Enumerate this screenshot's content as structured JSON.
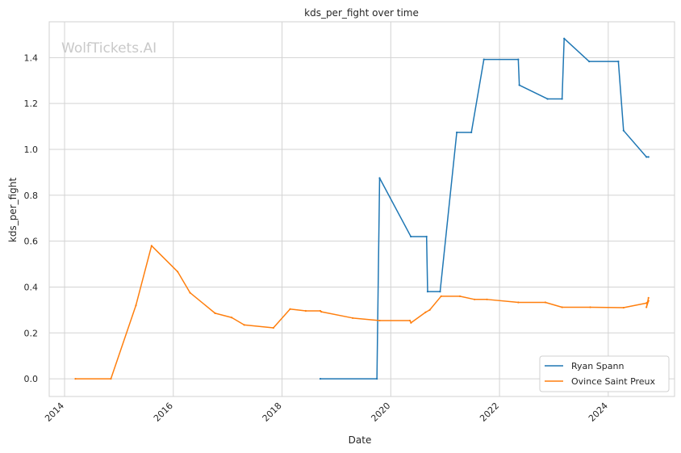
{
  "chart_data": {
    "type": "line",
    "title": "kds_per_fight over time",
    "xlabel": "Date",
    "ylabel": "kds_per_fight",
    "watermark": "WolfTickets.AI",
    "x_ticks": [
      "2014",
      "2016",
      "2018",
      "2020",
      "2022",
      "2024"
    ],
    "y_ticks": [
      "0.0",
      "0.2",
      "0.4",
      "0.6",
      "0.8",
      "1.0",
      "1.2",
      "1.4"
    ],
    "xlim": [
      "2013-09-20",
      "2025-03-22"
    ],
    "ylim": [
      -0.077,
      1.556
    ],
    "grid": true,
    "legend_position": "bottom-right",
    "colors": {
      "ryan_spann": "#1f77b4",
      "ovince_saint_preux": "#ff7f0e",
      "grid": "#d3d3d3",
      "axes_edge": "#d0d0d0",
      "text": "#262626",
      "watermark": "#c9c9c9"
    },
    "series": [
      {
        "name": "Ryan Spann",
        "points": [
          [
            "2018-09-15",
            0.0
          ],
          [
            "2019-09-30",
            0.0
          ],
          [
            "2019-10-18",
            0.875
          ],
          [
            "2020-05-15",
            0.62
          ],
          [
            "2020-08-29",
            0.62
          ],
          [
            "2020-09-05",
            0.38
          ],
          [
            "2020-11-28",
            0.38
          ],
          [
            "2021-03-20",
            1.074
          ],
          [
            "2021-06-26",
            1.074
          ],
          [
            "2021-09-18",
            1.392
          ],
          [
            "2022-05-07",
            1.392
          ],
          [
            "2022-05-14",
            1.28
          ],
          [
            "2022-11-19",
            1.22
          ],
          [
            "2023-02-25",
            1.22
          ],
          [
            "2023-03-11",
            1.483
          ],
          [
            "2023-08-26",
            1.383
          ],
          [
            "2024-03-09",
            1.383
          ],
          [
            "2024-04-13",
            1.082
          ],
          [
            "2024-09-14",
            0.967
          ],
          [
            "2024-09-28",
            0.967
          ]
        ]
      },
      {
        "name": "Ovince Saint Preux",
        "points": [
          [
            "2014-03-15",
            0.0
          ],
          [
            "2014-11-08",
            0.0
          ],
          [
            "2015-04-25",
            0.32
          ],
          [
            "2015-08-08",
            0.58
          ],
          [
            "2016-01-30",
            0.467
          ],
          [
            "2016-04-23",
            0.375
          ],
          [
            "2016-10-08",
            0.286
          ],
          [
            "2017-01-28",
            0.267
          ],
          [
            "2017-04-22",
            0.235
          ],
          [
            "2017-11-04",
            0.222
          ],
          [
            "2018-02-24",
            0.304
          ],
          [
            "2018-06-09",
            0.296
          ],
          [
            "2018-09-15",
            0.296
          ],
          [
            "2018-09-22",
            0.292
          ],
          [
            "2019-04-20",
            0.265
          ],
          [
            "2019-10-18",
            0.254
          ],
          [
            "2020-05-09",
            0.254
          ],
          [
            "2020-05-16",
            0.244
          ],
          [
            "2020-08-22",
            0.29
          ],
          [
            "2020-09-19",
            0.3
          ],
          [
            "2020-12-05",
            0.36
          ],
          [
            "2021-04-10",
            0.36
          ],
          [
            "2021-07-17",
            0.346
          ],
          [
            "2021-10-09",
            0.346
          ],
          [
            "2022-05-07",
            0.333
          ],
          [
            "2022-11-05",
            0.333
          ],
          [
            "2023-02-25",
            0.312
          ],
          [
            "2023-09-02",
            0.312
          ],
          [
            "2024-04-13",
            0.31
          ],
          [
            "2024-09-14",
            0.33
          ],
          [
            "2024-09-28",
            0.34
          ],
          [
            "2024-09-14",
            0.312
          ],
          [
            "2024-09-28",
            0.353
          ]
        ]
      }
    ]
  }
}
